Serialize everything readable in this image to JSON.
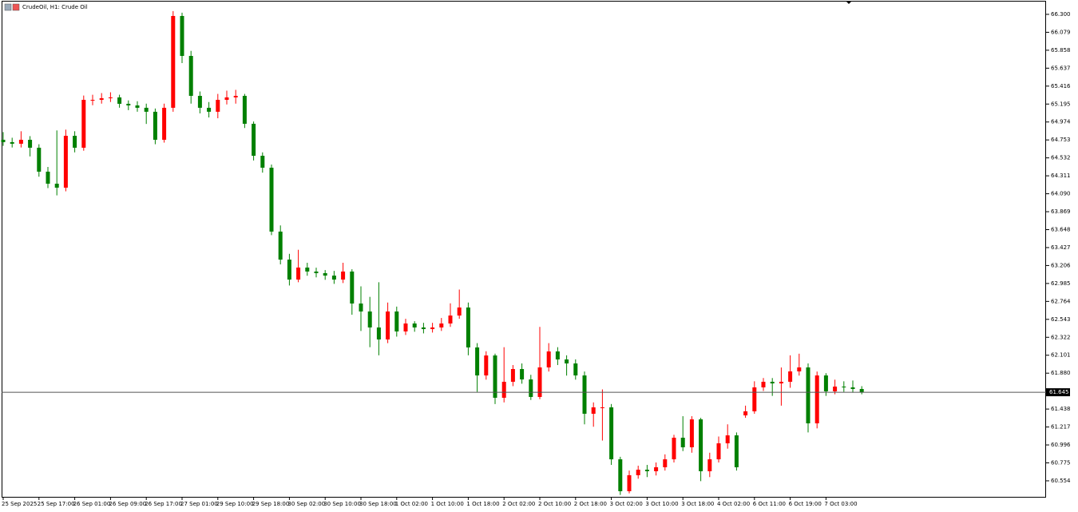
{
  "chart_data": {
    "type": "candlestick",
    "title": "CrudeOil, H1:  Crude Oil",
    "categories": [
      "25 Sep 2025",
      null,
      null,
      null,
      "25 Sep 17:00",
      null,
      null,
      null,
      "26 Sep 01:00",
      null,
      null,
      null,
      "26 Sep 09:00",
      null,
      null,
      null,
      "26 Sep 17:00",
      null,
      null,
      null,
      "27 Sep 01:00",
      null,
      null,
      null,
      "29 Sep 10:00",
      null,
      null,
      null,
      "29 Sep 18:00",
      null,
      null,
      null,
      "30 Sep 02:00",
      null,
      null,
      null,
      "30 Sep 10:00",
      null,
      null,
      null,
      "30 Sep 18:00",
      null,
      null,
      null,
      "1 Oct 02:00",
      null,
      null,
      null,
      "1 Oct 10:00",
      null,
      null,
      null,
      "1 Oct 18:00",
      null,
      null,
      null,
      "2 Oct 02:00",
      null,
      null,
      null,
      "2 Oct 10:00",
      null,
      null,
      null,
      "2 Oct 18:00",
      null,
      null,
      null,
      "3 Oct 02:00",
      null,
      null,
      null,
      "3 Oct 10:00",
      null,
      null,
      null,
      "3 Oct 18:00",
      null,
      null,
      null,
      "4 Oct 02:00",
      null,
      null,
      null,
      "6 Oct 11:00",
      null,
      null,
      null,
      "6 Oct 19:00",
      null,
      null,
      null,
      "7 Oct 03:00",
      null,
      null,
      null,
      null
    ],
    "open": [
      64.755,
      64.726,
      64.706,
      64.755,
      64.657,
      64.362,
      64.214,
      64.165,
      64.804,
      64.657,
      65.247,
      65.247,
      65.267,
      65.277,
      65.198,
      65.178,
      65.149,
      65.1,
      64.755,
      65.149,
      66.28,
      65.788,
      65.296,
      65.149,
      65.1,
      65.247,
      65.277,
      65.296,
      64.952,
      64.558,
      64.411,
      63.624,
      63.279,
      63.033,
      63.181,
      63.132,
      63.112,
      63.082,
      63.033,
      63.132,
      62.738,
      62.64,
      62.443,
      62.295,
      62.64,
      62.394,
      62.492,
      62.443,
      62.423,
      62.443,
      62.492,
      62.59,
      62.689,
      62.197,
      61.852,
      62.098,
      61.577,
      61.774,
      61.931,
      61.803,
      61.587,
      61.951,
      62.148,
      62.049,
      62.0,
      61.852,
      61.38,
      61.459,
      61.459,
      60.819,
      60.426,
      60.623,
      60.691,
      60.672,
      60.721,
      60.819,
      61.085,
      60.967,
      61.311,
      60.672,
      60.819,
      61.016,
      61.114,
      61.36,
      61.41,
      61.705,
      61.774,
      61.754,
      61.774,
      61.902,
      61.951,
      61.262,
      61.852,
      61.656,
      61.715,
      61.705,
      61.685
    ],
    "high": [
      64.85,
      64.78,
      64.86,
      64.8,
      64.7,
      64.42,
      64.87,
      64.88,
      64.86,
      65.3,
      65.31,
      65.33,
      65.34,
      65.31,
      65.24,
      65.23,
      65.2,
      65.14,
      65.2,
      66.34,
      66.32,
      65.85,
      65.35,
      65.22,
      65.32,
      65.36,
      65.37,
      65.32,
      64.98,
      64.6,
      64.45,
      63.7,
      63.35,
      63.4,
      63.24,
      63.18,
      63.15,
      63.14,
      63.24,
      63.16,
      62.95,
      62.82,
      63.0,
      62.75,
      62.7,
      62.55,
      62.52,
      62.5,
      62.5,
      62.56,
      62.74,
      62.91,
      62.75,
      62.25,
      62.15,
      62.12,
      62.2,
      61.98,
      62.0,
      61.86,
      62.45,
      62.25,
      62.2,
      62.1,
      62.05,
      61.9,
      61.52,
      61.68,
      61.5,
      60.85,
      60.68,
      60.74,
      60.75,
      60.78,
      60.88,
      61.12,
      61.35,
      61.35,
      61.33,
      60.9,
      61.1,
      61.25,
      61.15,
      61.48,
      61.78,
      61.82,
      61.82,
      61.95,
      62.1,
      62.12,
      62.0,
      61.9,
      61.88,
      61.8,
      61.78,
      61.79,
      61.72
    ],
    "low": [
      64.68,
      64.66,
      64.66,
      64.55,
      64.3,
      64.16,
      64.07,
      64.12,
      64.6,
      64.62,
      65.18,
      65.2,
      65.22,
      65.15,
      65.12,
      65.1,
      64.95,
      64.7,
      64.72,
      65.1,
      65.7,
      65.2,
      65.08,
      65.03,
      65.02,
      65.19,
      65.2,
      64.9,
      64.5,
      64.35,
      63.58,
      63.22,
      62.96,
      63.0,
      63.08,
      63.06,
      63.03,
      62.98,
      62.99,
      62.6,
      62.4,
      62.2,
      62.1,
      62.25,
      62.33,
      62.35,
      62.39,
      62.37,
      62.38,
      62.4,
      62.45,
      62.55,
      62.1,
      61.65,
      61.8,
      61.5,
      61.52,
      61.72,
      61.75,
      61.55,
      61.56,
      61.9,
      61.98,
      61.85,
      61.8,
      61.25,
      61.22,
      61.05,
      60.75,
      60.38,
      60.4,
      60.58,
      60.6,
      60.62,
      60.68,
      60.78,
      60.92,
      60.9,
      60.55,
      60.6,
      60.78,
      60.95,
      60.68,
      61.33,
      61.38,
      61.66,
      61.6,
      61.48,
      61.7,
      61.85,
      61.15,
      61.2,
      61.6,
      61.62,
      61.65,
      61.64,
      61.62
    ],
    "close": [
      64.726,
      64.706,
      64.755,
      64.657,
      64.362,
      64.214,
      64.165,
      64.804,
      64.657,
      65.247,
      65.247,
      65.267,
      65.277,
      65.198,
      65.178,
      65.149,
      65.1,
      64.755,
      65.149,
      66.28,
      65.788,
      65.296,
      65.149,
      65.1,
      65.247,
      65.277,
      65.296,
      64.952,
      64.558,
      64.411,
      63.624,
      63.279,
      63.033,
      63.181,
      63.132,
      63.112,
      63.082,
      63.033,
      63.132,
      62.738,
      62.64,
      62.443,
      62.295,
      62.64,
      62.394,
      62.492,
      62.443,
      62.423,
      62.443,
      62.492,
      62.59,
      62.689,
      62.197,
      61.852,
      62.098,
      61.577,
      61.774,
      61.931,
      61.803,
      61.587,
      61.951,
      62.148,
      62.049,
      62.0,
      61.852,
      61.38,
      61.459,
      61.459,
      60.819,
      60.426,
      60.623,
      60.691,
      60.672,
      60.721,
      60.819,
      61.085,
      60.967,
      61.311,
      60.672,
      60.819,
      61.016,
      61.114,
      60.721,
      61.41,
      61.705,
      61.774,
      61.754,
      61.774,
      61.902,
      61.951,
      61.262,
      61.852,
      61.656,
      61.715,
      61.705,
      61.685,
      61.645
    ],
    "up_color": "#ff0000",
    "down_color": "#008000",
    "ylim": [
      60.347,
      66.457
    ],
    "yticks": [
      {
        "value": 66.3,
        "label": "66.300"
      },
      {
        "value": 66.079,
        "label": "66.079"
      },
      {
        "value": 65.858,
        "label": "65.858"
      },
      {
        "value": 65.637,
        "label": "65.637"
      },
      {
        "value": 65.416,
        "label": "65.416"
      },
      {
        "value": 65.195,
        "label": "65.195"
      },
      {
        "value": 64.974,
        "label": "64.974"
      },
      {
        "value": 64.753,
        "label": "64.753"
      },
      {
        "value": 64.532,
        "label": "64.532"
      },
      {
        "value": 64.311,
        "label": "64.311"
      },
      {
        "value": 64.09,
        "label": "64.090"
      },
      {
        "value": 63.869,
        "label": "63.869"
      },
      {
        "value": 63.648,
        "label": "63.648"
      },
      {
        "value": 63.427,
        "label": "63.427"
      },
      {
        "value": 63.206,
        "label": "63.206"
      },
      {
        "value": 62.985,
        "label": "62.985"
      },
      {
        "value": 62.764,
        "label": "62.764"
      },
      {
        "value": 62.543,
        "label": "62.543"
      },
      {
        "value": 62.322,
        "label": "62.322"
      },
      {
        "value": 62.101,
        "label": "62.101"
      },
      {
        "value": 61.88,
        "label": "61.880"
      },
      {
        "value": 61.438,
        "label": "61.438"
      },
      {
        "value": 61.217,
        "label": "61.217"
      },
      {
        "value": 60.996,
        "label": "60.996"
      },
      {
        "value": 60.775,
        "label": "60.775"
      },
      {
        "value": 60.554,
        "label": "60.554"
      }
    ],
    "last_price": {
      "value": 61.645,
      "label": "61.645"
    }
  }
}
